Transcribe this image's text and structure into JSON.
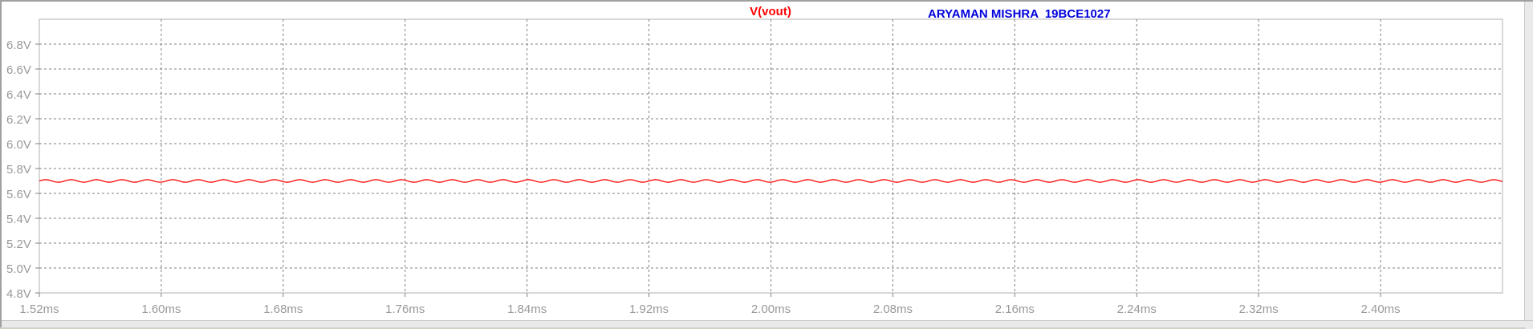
{
  "colors": {
    "trace": "#ff0000",
    "author": "#0000dd",
    "grid": "#808080",
    "axis_text": "#999999",
    "frame": "#b0b0b0"
  },
  "chart_data": {
    "type": "line",
    "title": "V(vout)",
    "annotation": "ARYAMAN MISHRA  19BCE1027",
    "xlabel": "",
    "ylabel": "",
    "xlim": [
      1.52,
      2.48
    ],
    "ylim": [
      4.8,
      7.0
    ],
    "x_unit": "ms",
    "y_unit": "V",
    "grid": true,
    "legend": "top-center",
    "x_ticks": [
      "1.52ms",
      "1.60ms",
      "1.68ms",
      "1.76ms",
      "1.84ms",
      "1.92ms",
      "2.00ms",
      "2.08ms",
      "2.16ms",
      "2.24ms",
      "2.32ms",
      "2.40ms"
    ],
    "x_tick_values": [
      1.52,
      1.6,
      1.68,
      1.76,
      1.84,
      1.92,
      2.0,
      2.08,
      2.16,
      2.24,
      2.32,
      2.4
    ],
    "y_ticks": [
      "4.8V",
      "5.0V",
      "5.2V",
      "5.4V",
      "5.6V",
      "5.8V",
      "6.0V",
      "6.2V",
      "6.4V",
      "6.6V",
      "6.8V"
    ],
    "y_tick_values": [
      4.8,
      5.0,
      5.2,
      5.4,
      5.6,
      5.8,
      6.0,
      6.2,
      6.4,
      6.6,
      6.8
    ],
    "series": [
      {
        "name": "V(vout)",
        "mean": 5.7,
        "ripple_amplitude": 0.01,
        "ripple_period_ms": 0.01667,
        "x_range": [
          1.52,
          2.48
        ]
      }
    ]
  }
}
